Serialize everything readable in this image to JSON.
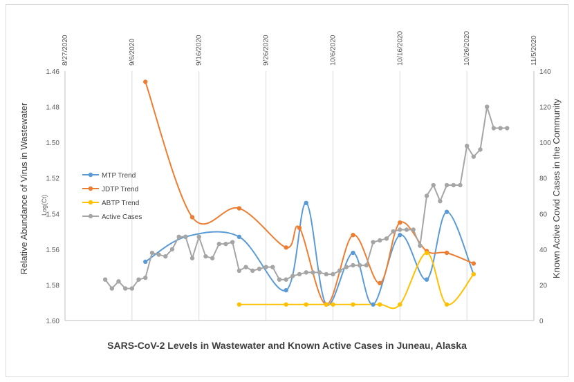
{
  "chart_data": {
    "type": "line",
    "title": "SARS-CoV-2 Levels in Wastewater and Known Active Cases in Juneau, Alaska",
    "y_left_label": "Relative Abundance of Virus in Wastewater",
    "y_left_sublabel": "Log(Ct)",
    "y_right_label": "Known Active Covid Cases in the Community",
    "y_left_range": [
      1.46,
      1.6
    ],
    "y_left_inverted": true,
    "y_left_ticks": [
      "1.46",
      "1.48",
      "1.50",
      "1.52",
      "1.54",
      "1.56",
      "1.58",
      "1.60"
    ],
    "y_right_range": [
      0,
      140
    ],
    "y_right_ticks": [
      "0",
      "20",
      "40",
      "60",
      "80",
      "100",
      "120",
      "140"
    ],
    "x_ticks": [
      "8/27/2020",
      "9/6/2020",
      "9/16/2020",
      "9/26/2020",
      "10/6/2020",
      "10/16/2020",
      "10/26/2020",
      "11/5/2020"
    ],
    "x_range": [
      "2020-08-27",
      "2020-11-05"
    ],
    "legend_placement": "left",
    "grid": "vertical",
    "series": [
      {
        "name": "MTP Trend",
        "color": "#5B9BD5",
        "axis": "left",
        "x": [
          "2020-09-08",
          "2020-09-14",
          "2020-09-22",
          "2020-09-29",
          "2020-10-02",
          "2020-10-05",
          "2020-10-09",
          "2020-10-12",
          "2020-10-16",
          "2020-10-20",
          "2020-10-23",
          "2020-10-27"
        ],
        "y": [
          1.567,
          1.553,
          1.553,
          1.583,
          1.534,
          1.591,
          1.562,
          1.591,
          1.552,
          1.577,
          1.539,
          1.574
        ]
      },
      {
        "name": "JDTP Trend",
        "color": "#ED7D31",
        "axis": "left",
        "x": [
          "2020-09-08",
          "2020-09-15",
          "2020-09-22",
          "2020-09-29",
          "2020-10-01",
          "2020-10-05",
          "2020-10-09",
          "2020-10-13",
          "2020-10-16",
          "2020-10-20",
          "2020-10-23",
          "2020-10-27"
        ],
        "y": [
          1.466,
          1.542,
          1.537,
          1.559,
          1.548,
          1.591,
          1.552,
          1.579,
          1.545,
          1.561,
          1.562,
          1.568
        ]
      },
      {
        "name": "ABTP Trend",
        "color": "#FFC000",
        "axis": "left",
        "x": [
          "2020-09-22",
          "2020-09-29",
          "2020-10-02",
          "2020-10-05",
          "2020-10-06",
          "2020-10-09",
          "2020-10-13",
          "2020-10-16",
          "2020-10-20",
          "2020-10-23",
          "2020-10-27"
        ],
        "y": [
          1.591,
          1.591,
          1.591,
          1.591,
          1.591,
          1.591,
          1.591,
          1.591,
          1.562,
          1.591,
          1.574
        ]
      },
      {
        "name": "Active Cases",
        "color": "#A5A5A5",
        "axis": "right",
        "x": [
          "2020-09-02",
          "2020-09-03",
          "2020-09-04",
          "2020-09-05",
          "2020-09-06",
          "2020-09-07",
          "2020-09-08",
          "2020-09-09",
          "2020-09-10",
          "2020-09-11",
          "2020-09-12",
          "2020-09-13",
          "2020-09-14",
          "2020-09-15",
          "2020-09-16",
          "2020-09-17",
          "2020-09-18",
          "2020-09-19",
          "2020-09-20",
          "2020-09-21",
          "2020-09-22",
          "2020-09-23",
          "2020-09-24",
          "2020-09-25",
          "2020-09-26",
          "2020-09-27",
          "2020-09-28",
          "2020-09-29",
          "2020-09-30",
          "2020-10-01",
          "2020-10-02",
          "2020-10-03",
          "2020-10-04",
          "2020-10-05",
          "2020-10-06",
          "2020-10-07",
          "2020-10-08",
          "2020-10-09",
          "2020-10-10",
          "2020-10-11",
          "2020-10-12",
          "2020-10-13",
          "2020-10-14",
          "2020-10-15",
          "2020-10-16",
          "2020-10-17",
          "2020-10-18",
          "2020-10-19",
          "2020-10-20",
          "2020-10-21",
          "2020-10-22",
          "2020-10-23",
          "2020-10-24",
          "2020-10-25",
          "2020-10-26",
          "2020-10-27",
          "2020-10-28",
          "2020-10-29",
          "2020-10-30",
          "2020-10-31",
          "2020-11-01"
        ],
        "y": [
          23,
          18,
          22,
          18,
          18,
          23,
          24,
          38,
          37,
          36,
          40,
          47,
          47,
          35,
          47,
          36,
          35,
          43,
          43,
          44,
          28,
          30,
          28,
          29,
          30,
          30,
          23,
          23,
          25,
          26,
          27,
          27,
          27,
          26,
          26,
          28,
          30,
          31,
          31,
          31,
          44,
          45,
          46,
          50,
          51,
          51,
          51,
          42,
          70,
          76,
          67,
          76,
          76,
          76,
          98,
          92,
          96,
          120,
          108,
          108,
          108
        ]
      }
    ]
  }
}
